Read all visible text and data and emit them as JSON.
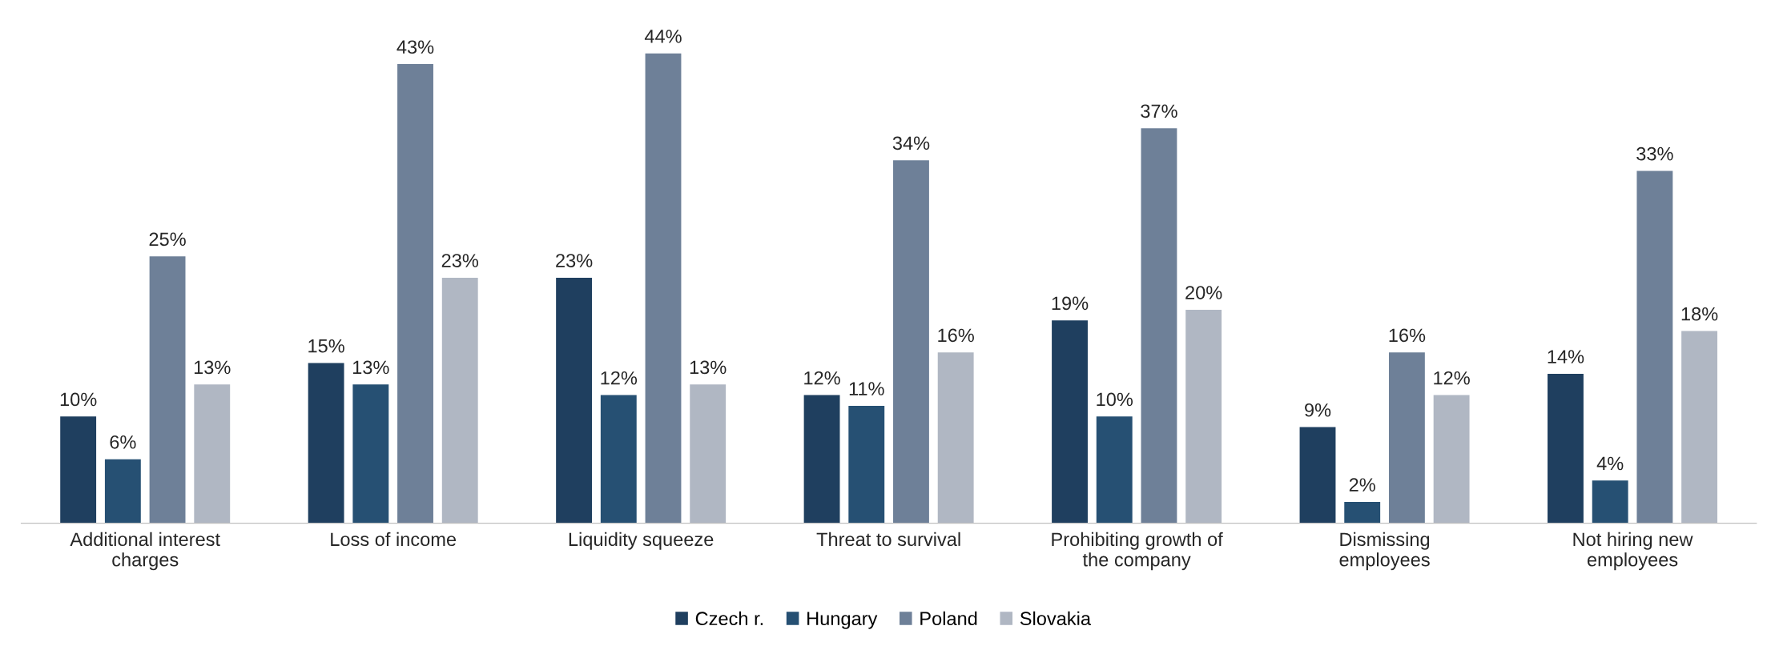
{
  "chart_data": {
    "type": "bar",
    "categories": [
      "Additional interest\ncharges",
      "Loss of income",
      "Liquidity squeeze",
      "Threat to survival",
      "Prohibiting growth of\nthe company",
      "Dismissing\nemployees",
      "Not hiring new\nemployees"
    ],
    "series": [
      {
        "name": "Czech r.",
        "color": "#1f3f5f",
        "values": [
          10,
          15,
          23,
          12,
          19,
          9,
          14
        ],
        "value_labels": [
          "10%",
          "15%",
          "23%",
          "12%",
          "19%",
          "9%",
          "14%"
        ]
      },
      {
        "name": "Hungary",
        "color": "#265073",
        "values": [
          6,
          13,
          12,
          11,
          10,
          2,
          4
        ],
        "value_labels": [
          "6%",
          "13%",
          "12%",
          "11%",
          "10%",
          "2%",
          "4%"
        ]
      },
      {
        "name": "Poland",
        "color": "#6e8098",
        "values": [
          25,
          43,
          44,
          34,
          37,
          16,
          33
        ],
        "value_labels": [
          "25%",
          "43%",
          "44%",
          "34%",
          "37%",
          "16%",
          "33%"
        ]
      },
      {
        "name": "Slovakia",
        "color": "#b0b7c3",
        "values": [
          13,
          23,
          13,
          16,
          20,
          12,
          18
        ],
        "value_labels": [
          "13%",
          "23%",
          "13%",
          "16%",
          "20%",
          "12%",
          "18%"
        ]
      }
    ],
    "grid": false,
    "legend": "bottom"
  }
}
